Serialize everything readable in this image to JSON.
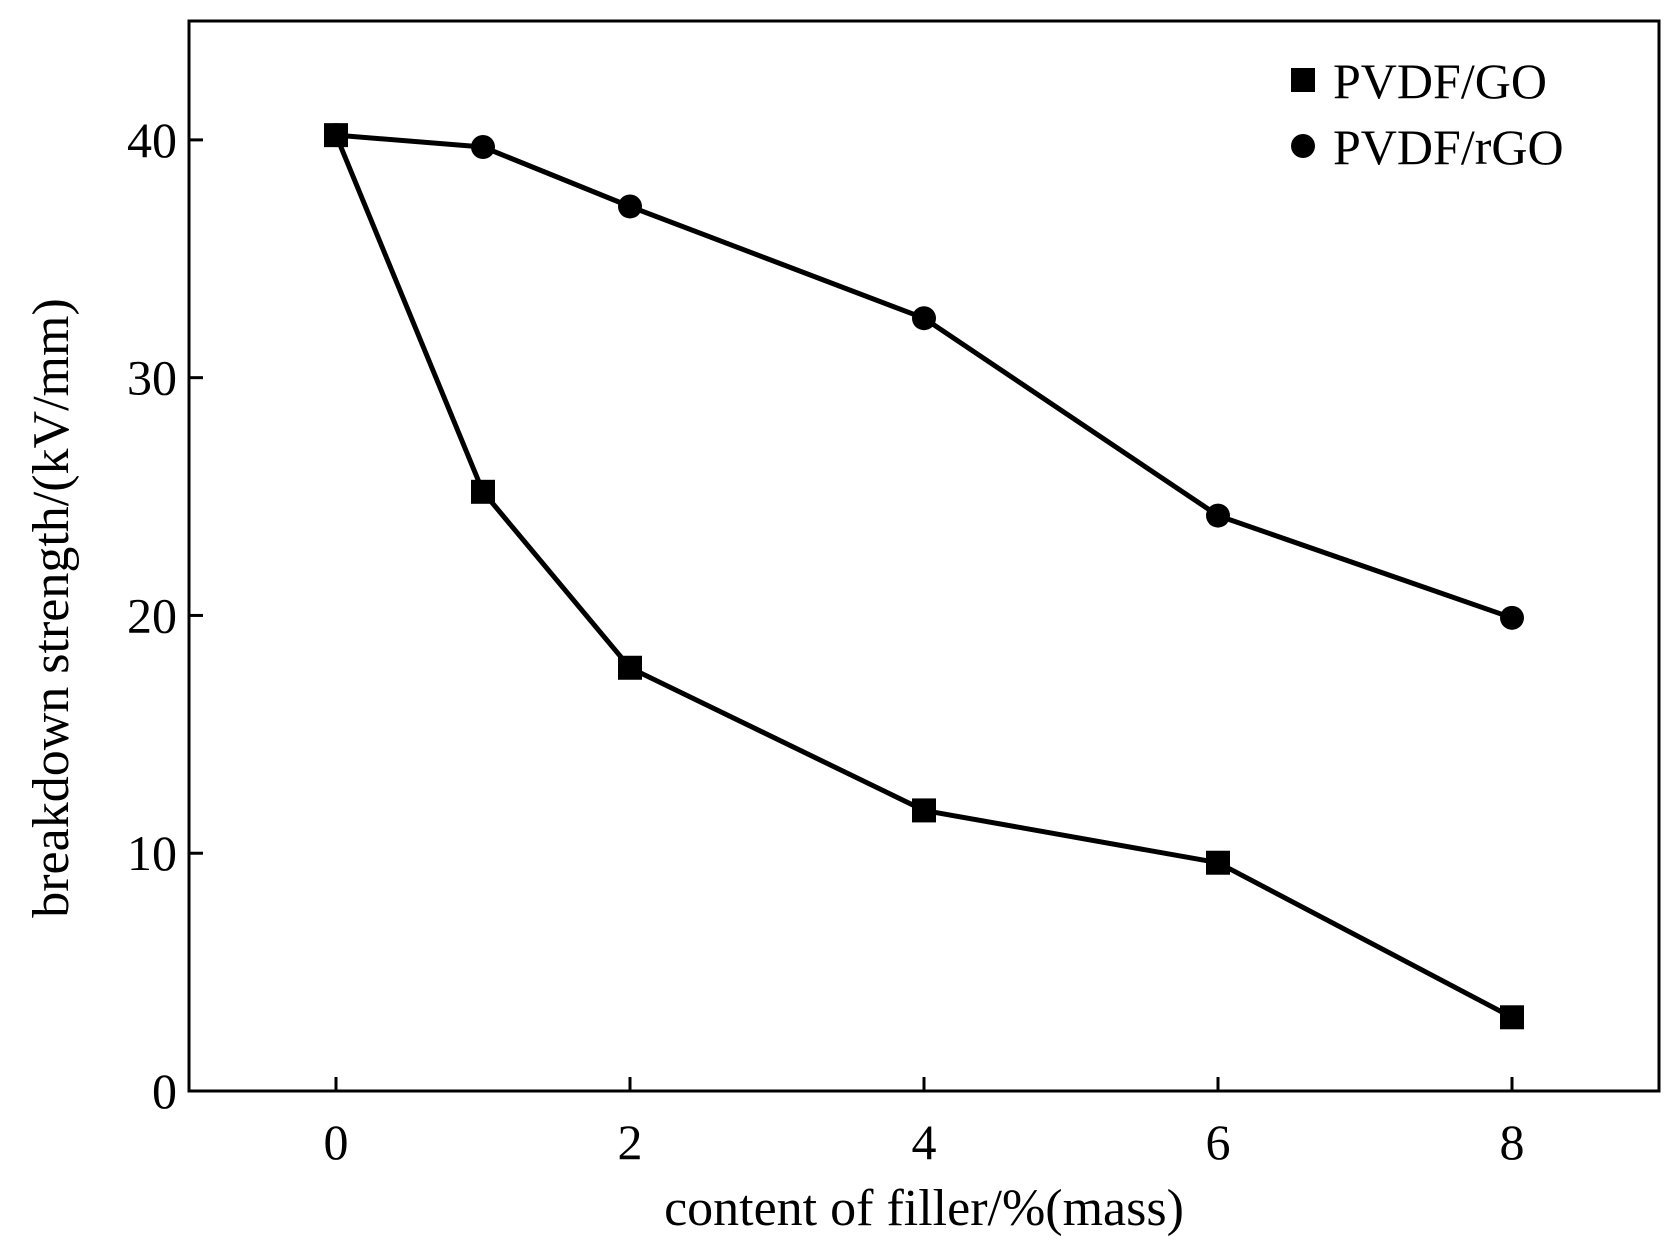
{
  "chart_data": {
    "type": "line",
    "xlabel": "content of filler/%(mass)",
    "ylabel": "breakdown strength/(kV/mm)",
    "xlim": [
      -1,
      9
    ],
    "ylim": [
      0,
      45
    ],
    "xticks": [
      0,
      2,
      4,
      6,
      8
    ],
    "yticks": [
      0,
      10,
      20,
      30,
      40
    ],
    "xtick_labels": [
      "0",
      "2",
      "4",
      "6",
      "8"
    ],
    "ytick_labels": [
      "0",
      "10",
      "20",
      "30",
      "40"
    ],
    "grid": false,
    "legend_position": "top-right",
    "series": [
      {
        "name": "PVDF/GO",
        "marker": "square",
        "color": "#000000",
        "x": [
          0,
          1,
          2,
          4,
          6,
          8
        ],
        "y": [
          40.2,
          25.2,
          17.8,
          11.8,
          9.6,
          3.1
        ]
      },
      {
        "name": "PVDF/rGO",
        "marker": "circle",
        "color": "#000000",
        "x": [
          0,
          1,
          2,
          4,
          6,
          8
        ],
        "y": [
          40.2,
          39.7,
          37.2,
          32.5,
          24.2,
          19.9
        ]
      }
    ]
  }
}
